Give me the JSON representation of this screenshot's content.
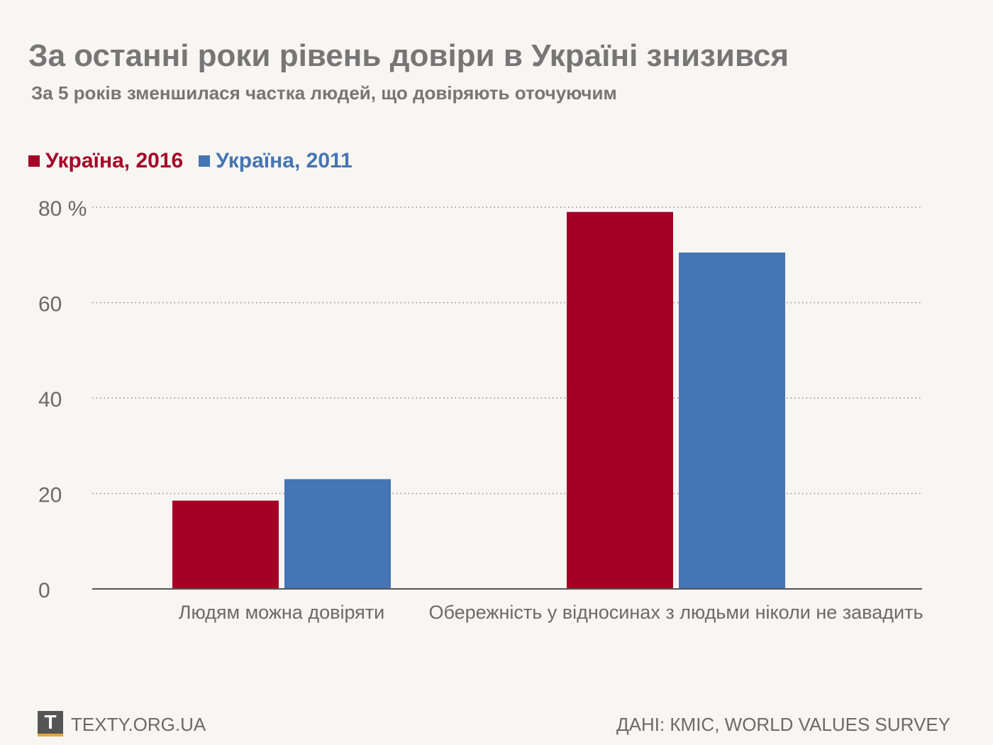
{
  "title": "За останні роки рівень довіри в Україні знизився",
  "subtitle": "За 5 років зменшилася частка людей, що довіряють оточуючим",
  "footer": {
    "logo_letter": "T",
    "site": "TEXTY.ORG.UA",
    "source": "ДАНІ: КМІС, WORLD VALUES SURVEY"
  },
  "chart_data": {
    "type": "bar",
    "categories": [
      "Людям можна довіряти",
      "Обережність у відносинах з людьми ніколи не завадить"
    ],
    "series": [
      {
        "name": "Україна, 2016",
        "color": "#a50026",
        "values": [
          18.5,
          79
        ]
      },
      {
        "name": "Україна, 2011",
        "color": "#4575b4",
        "values": [
          23,
          70.5
        ]
      }
    ],
    "yticks": [
      {
        "value": 0,
        "label": "0"
      },
      {
        "value": 20,
        "label": "20"
      },
      {
        "value": 40,
        "label": "40"
      },
      {
        "value": 60,
        "label": "60"
      },
      {
        "value": 80,
        "label": "80 %"
      }
    ],
    "ylim": [
      0,
      80
    ],
    "grid": true,
    "legend_position": "top-left"
  }
}
